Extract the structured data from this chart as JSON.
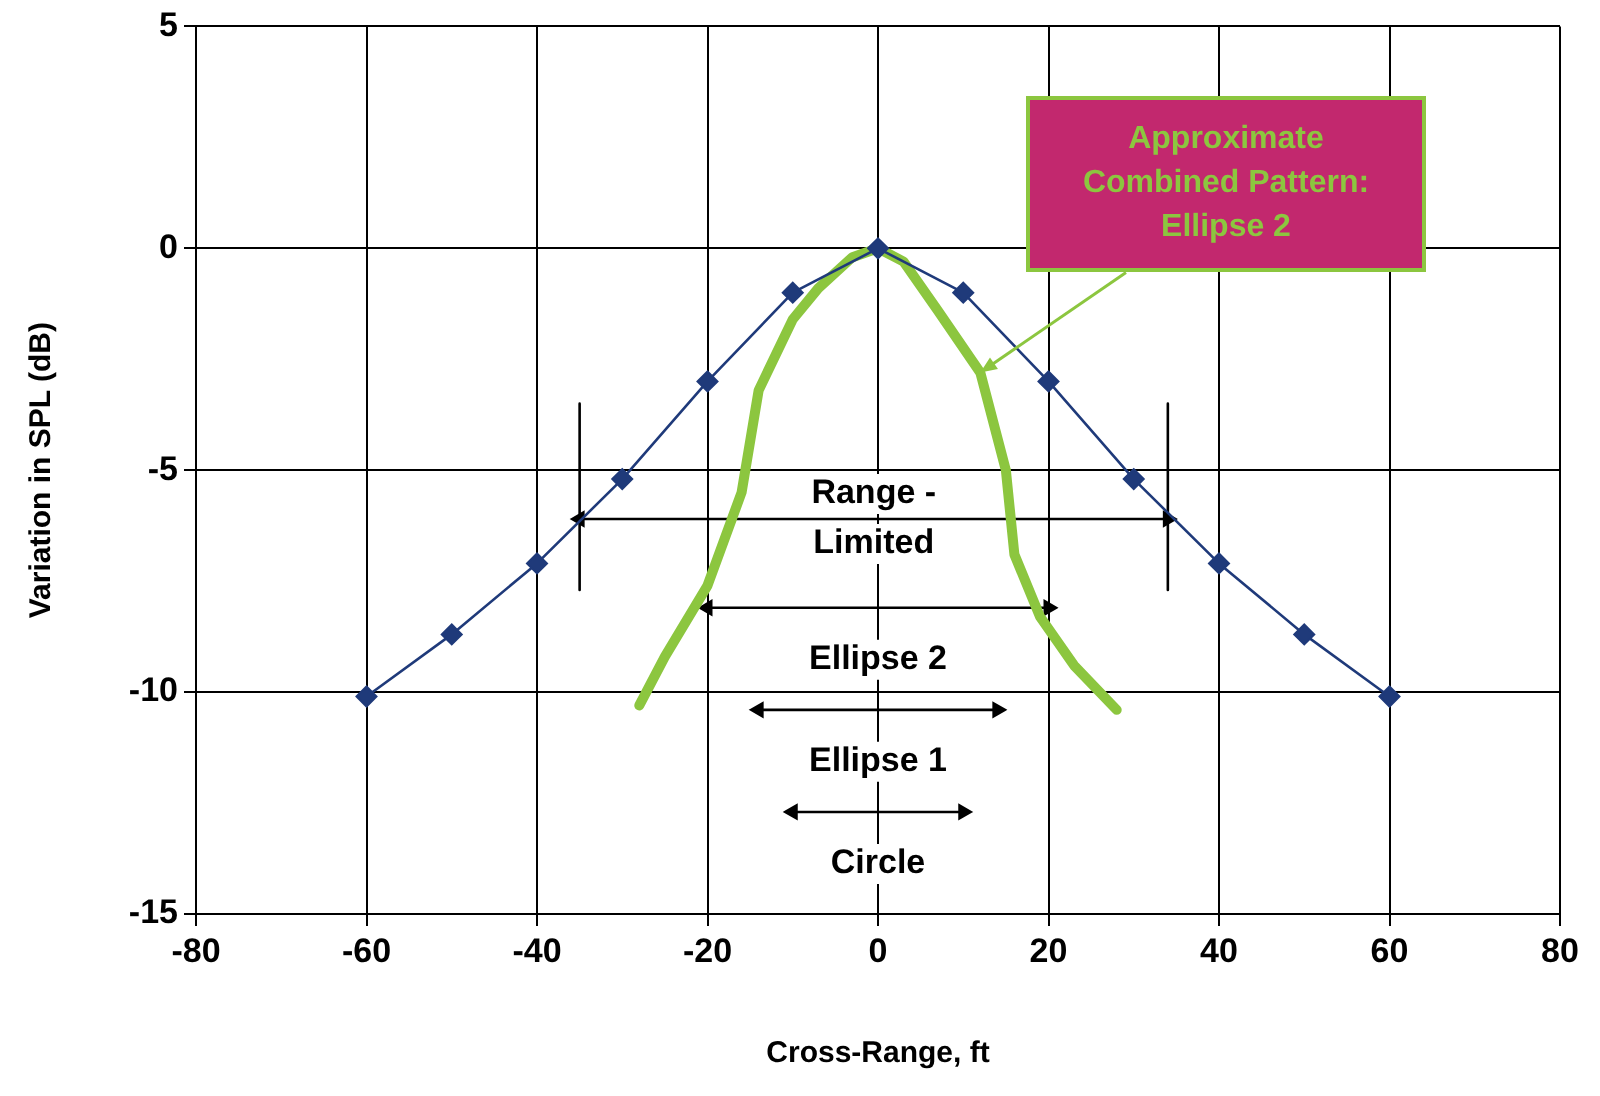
{
  "chart_data": {
    "type": "line",
    "xlabel": "Cross-Range, ft",
    "ylabel": "Variation in SPL (dB)",
    "xlim": [
      -80,
      80
    ],
    "xticks": [
      -80,
      -60,
      -40,
      -20,
      0,
      20,
      40,
      60,
      80
    ],
    "ylim": [
      -15,
      5
    ],
    "yticks": [
      -15,
      -10,
      -5,
      0,
      5
    ],
    "grid": true,
    "legend": false,
    "series": [
      {
        "color": "#1f3a7a",
        "marker": "diamond",
        "x": [
          -60,
          -50,
          -40,
          -30,
          -20,
          -10,
          0,
          10,
          20,
          30,
          40,
          50,
          60
        ],
        "values": [
          -10.1,
          -8.7,
          -7.1,
          -5.2,
          -3.0,
          -1.0,
          0,
          -1.0,
          -3.0,
          -5.2,
          -7.1,
          -8.7,
          -10.1
        ]
      },
      {
        "color": "#8cc63f",
        "marker": "none",
        "x": [
          -28,
          -25,
          -20,
          -16,
          -14,
          -10,
          -7,
          -3,
          0,
          3,
          7,
          12,
          15,
          16,
          19,
          23,
          28
        ],
        "values": [
          -10.3,
          -9.2,
          -7.6,
          -5.5,
          -3.2,
          -1.6,
          -0.9,
          -0.2,
          0,
          -0.3,
          -1.4,
          -2.8,
          -5.0,
          -6.9,
          -8.3,
          -9.4,
          -10.4
        ]
      },
      {
        "name": "Range - Limited",
        "color": "#000000",
        "marker": "triangle",
        "x": [
          -35,
          34
        ],
        "values": [
          -6.1,
          -6.1
        ]
      },
      {
        "color": "#000000",
        "marker": "none",
        "x": [
          -35,
          -35
        ],
        "values": [
          -3.5,
          -7.7
        ]
      },
      {
        "color": "#000000",
        "marker": "none",
        "x": [
          34,
          34
        ],
        "values": [
          -3.5,
          -7.7
        ]
      },
      {
        "name": "Ellipse 2",
        "color": "#000000",
        "marker": "triangle",
        "x": [
          -20,
          20
        ],
        "values": [
          -8.1,
          -8.1
        ]
      },
      {
        "name": "Ellipse 1",
        "color": "#000000",
        "marker": "triangle",
        "x": [
          -14,
          14
        ],
        "values": [
          -10.4,
          -10.4
        ]
      },
      {
        "name": "Circle",
        "color": "#000000",
        "marker": "triangle",
        "x": [
          -10,
          10
        ],
        "values": [
          -12.7,
          -12.7
        ]
      }
    ],
    "annotations": [
      {
        "text": "Approximate Combined Pattern: Ellipse 2",
        "x": 12,
        "y": -2.8
      }
    ]
  }
}
